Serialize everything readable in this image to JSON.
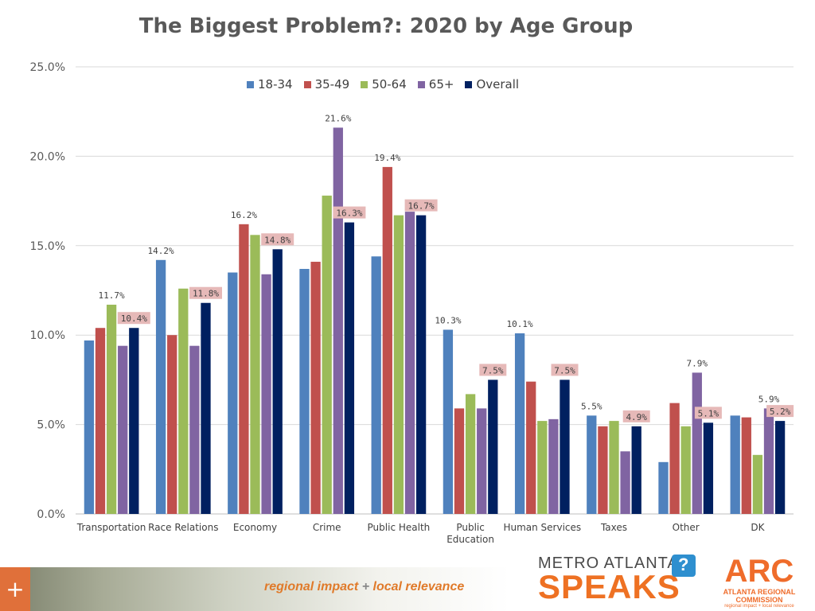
{
  "chart_data": {
    "type": "bar",
    "title": "The Biggest Problem?: 2020 by Age Group",
    "xlabel": "",
    "ylabel": "",
    "ylim": [
      0,
      25
    ],
    "y_ticks": [
      "0.0%",
      "5.0%",
      "10.0%",
      "15.0%",
      "20.0%",
      "25.0%"
    ],
    "y_tick_values": [
      0,
      5,
      10,
      15,
      20,
      25
    ],
    "categories": [
      "Transportation",
      "Race Relations",
      "Economy",
      "Crime",
      "Public Health",
      "Public Education",
      "Human Services",
      "Taxes",
      "Other",
      "DK"
    ],
    "category_lines": [
      [
        "Transportation"
      ],
      [
        "Race Relations"
      ],
      [
        "Economy"
      ],
      [
        "Crime"
      ],
      [
        "Public Health"
      ],
      [
        "Public",
        "Education"
      ],
      [
        "Human Services"
      ],
      [
        "Taxes"
      ],
      [
        "Other"
      ],
      [
        "DK"
      ]
    ],
    "series": [
      {
        "name": "18-34",
        "color": "#4f81bd",
        "values": [
          9.7,
          14.2,
          13.5,
          13.7,
          14.4,
          10.3,
          10.1,
          5.5,
          2.9,
          5.5
        ]
      },
      {
        "name": "35-49",
        "color": "#c0504d",
        "values": [
          10.4,
          10.0,
          16.2,
          14.1,
          19.4,
          5.9,
          7.4,
          4.9,
          6.2,
          5.4
        ]
      },
      {
        "name": "50-64",
        "color": "#9bbb59",
        "values": [
          11.7,
          12.6,
          15.6,
          17.8,
          16.7,
          6.7,
          5.2,
          5.2,
          4.9,
          3.3
        ]
      },
      {
        "name": "65+",
        "color": "#8064a2",
        "values": [
          9.4,
          9.4,
          13.4,
          21.6,
          16.9,
          5.9,
          5.3,
          3.5,
          7.9,
          5.9
        ]
      },
      {
        "name": "Overall",
        "color": "#002060",
        "values": [
          10.4,
          11.8,
          14.8,
          16.3,
          16.7,
          7.5,
          7.5,
          4.9,
          5.1,
          5.2
        ]
      }
    ],
    "labels": [
      {
        "category": 0,
        "series": 2,
        "text": "11.7%"
      },
      {
        "category": 0,
        "series": 4,
        "text": "10.4%",
        "highlight": true
      },
      {
        "category": 1,
        "series": 0,
        "text": "14.2%"
      },
      {
        "category": 1,
        "series": 4,
        "text": "11.8%",
        "highlight": true
      },
      {
        "category": 2,
        "series": 1,
        "text": "16.2%"
      },
      {
        "category": 2,
        "series": 4,
        "text": "14.8%",
        "highlight": true
      },
      {
        "category": 3,
        "series": 3,
        "text": "21.6%"
      },
      {
        "category": 3,
        "series": 4,
        "text": "16.3%",
        "highlight": true
      },
      {
        "category": 4,
        "series": 1,
        "text": "19.4%"
      },
      {
        "category": 4,
        "series": 4,
        "text": "16.7%",
        "highlight": true
      },
      {
        "category": 5,
        "series": 0,
        "text": "10.3%"
      },
      {
        "category": 5,
        "series": 4,
        "text": "7.5%",
        "highlight": true
      },
      {
        "category": 6,
        "series": 0,
        "text": "10.1%"
      },
      {
        "category": 6,
        "series": 4,
        "text": "7.5%",
        "highlight": true
      },
      {
        "category": 7,
        "series": 0,
        "text": "5.5%"
      },
      {
        "category": 7,
        "series": 4,
        "text": "4.9%",
        "highlight": true
      },
      {
        "category": 8,
        "series": 3,
        "text": "7.9%"
      },
      {
        "category": 8,
        "series": 4,
        "text": "5.1%",
        "highlight": true
      },
      {
        "category": 9,
        "series": 3,
        "text": "5.9%"
      },
      {
        "category": 9,
        "series": 4,
        "text": "5.2%",
        "highlight": true
      }
    ],
    "legend_position": "top-center",
    "grid": true
  },
  "footer": {
    "tagline_left": "regional impact",
    "tagline_plus": "+",
    "tagline_right": "local relevance",
    "plus_icon": "+",
    "mas_logo_top": "METRO ATLANTA",
    "mas_logo_bottom": "SPEAKS",
    "arc_logo_mark": "ARC",
    "arc_logo_name": "ATLANTA REGIONAL COMMISSION",
    "arc_logo_tag": "regional impact + local relevance"
  }
}
